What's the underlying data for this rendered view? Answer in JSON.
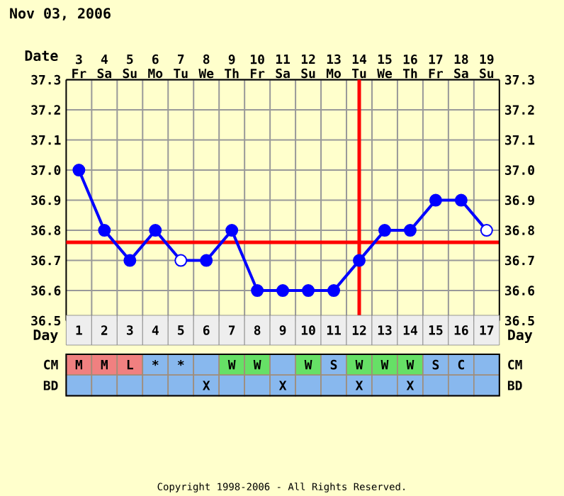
{
  "chart_data": [
    {
      "type": "line",
      "title": "Nov 03, 2006",
      "categories": [
        "3 Fr",
        "4 Sa",
        "5 Su",
        "6 Mo",
        "7 Tu",
        "8 We",
        "9 Th",
        "10 Fr",
        "11 Sa",
        "12 Su",
        "13 Mo",
        "14 Tu",
        "15 We",
        "16 Th",
        "17 Fr",
        "18 Sa",
        "19 Su"
      ],
      "xlabel": "Date",
      "x2lim": [
        0.5,
        17.5
      ],
      "x2ticks": [
        1,
        2,
        3,
        4,
        5,
        6,
        7,
        8,
        9,
        10,
        11,
        12,
        13,
        14,
        15,
        16,
        17
      ],
      "x2label": "Day",
      "ylim": [
        36.5,
        37.3
      ],
      "yticks": [
        36.5,
        36.6,
        36.7,
        36.8,
        36.9,
        {
          "value": 37,
          "label": "37.0"
        },
        37.1,
        37.2,
        37.3
      ],
      "y2lim": [
        36.5,
        37.3
      ],
      "y2ticks": [
        36.5,
        36.6,
        36.7,
        36.8,
        36.9,
        {
          "value": 37,
          "label": "37.0"
        },
        37.1,
        37.2,
        37.3
      ],
      "grid": true,
      "marker": "circle",
      "series": [
        {
          "type": "line",
          "color": "#0000ff",
          "values": [
            37.0,
            36.8,
            36.7,
            36.8,
            36.7,
            36.7,
            36.8,
            36.6,
            36.6,
            36.6,
            36.6,
            36.7,
            36.8,
            36.8,
            36.9,
            36.9,
            36.8
          ],
          "colors": [
            "#0000ff",
            "#0000ff",
            "#0000ff",
            "#0000ff",
            "#ffffff",
            "#0000ff",
            "#0000ff",
            "#0000ff",
            "#0000ff",
            "#0000ff",
            "#0000ff",
            "#0000ff",
            "#0000ff",
            "#0000ff",
            "#0000ff",
            "#0000ff",
            "#ffffff"
          ]
        }
      ],
      "ref_lines": [
        {
          "axis": "y",
          "value": 36.76,
          "color": "#ff0000"
        },
        {
          "axis": "x2",
          "value": 12,
          "color": "#ff0000"
        }
      ]
    },
    {
      "type": "other",
      "y_categories": [
        "CM",
        "BD"
      ],
      "y2_categories": [
        "CM",
        "BD"
      ],
      "colors": [
        [
          "#f08080",
          "#f08080",
          "#f08080",
          "#88b8ee",
          "#88b8ee",
          "#88b8ee",
          "#66e066",
          "#66e066",
          "#88b8ee",
          "#66e066",
          "#88b8ee",
          "#66e066",
          "#66e066",
          "#66e066",
          "#88b8ee",
          "#88b8ee",
          "#88b8ee"
        ],
        [
          "#88b8ee",
          "#88b8ee",
          "#88b8ee",
          "#88b8ee",
          "#88b8ee",
          "#88b8ee",
          "#88b8ee",
          "#88b8ee",
          "#88b8ee",
          "#88b8ee",
          "#88b8ee",
          "#88b8ee",
          "#88b8ee",
          "#88b8ee",
          "#88b8ee",
          "#88b8ee",
          "#88b8ee"
        ]
      ],
      "cell_labels": [
        [
          "M",
          "M",
          "L",
          "*",
          "*",
          null,
          "W",
          "W",
          null,
          "W",
          "S",
          "W",
          "W",
          "W",
          "S",
          "C",
          null
        ],
        [
          null,
          null,
          null,
          null,
          null,
          "X",
          null,
          null,
          "X",
          null,
          null,
          "X",
          null,
          "X",
          null,
          null,
          null
        ]
      ],
      "annotations": [
        "Copyright 1998-2006 - All Rights Reserved."
      ]
    }
  ]
}
